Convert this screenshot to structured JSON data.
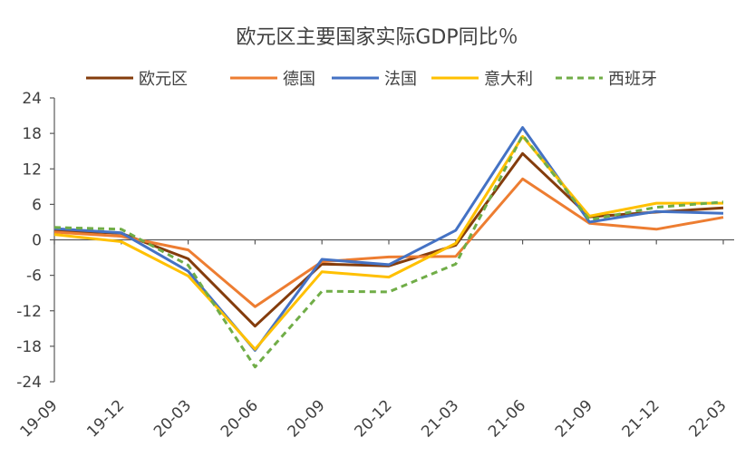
{
  "chart_data": {
    "type": "line",
    "title": "欧元区主要国家实际GDP同比％",
    "xlabel": "",
    "ylabel": "",
    "categories": [
      "19-09",
      "19-12",
      "20-03",
      "20-06",
      "20-09",
      "20-12",
      "21-03",
      "21-06",
      "21-09",
      "21-12",
      "22-03"
    ],
    "y_ticks": [
      24,
      18,
      12,
      6,
      0,
      -6,
      -12,
      -18,
      -24
    ],
    "ylim": [
      -24,
      24
    ],
    "grid": false,
    "legend_position": "top",
    "series": [
      {
        "name": "欧元区",
        "color": "#843C0C",
        "dash": false,
        "values": [
          1.6,
          1.1,
          -3.2,
          -14.6,
          -4.1,
          -4.4,
          -0.9,
          14.6,
          3.9,
          4.7,
          5.4
        ]
      },
      {
        "name": "德国",
        "color": "#ED7D31",
        "dash": false,
        "values": [
          1.3,
          0.6,
          -1.7,
          -11.3,
          -3.7,
          -2.9,
          -2.8,
          10.3,
          2.8,
          1.8,
          3.8
        ]
      },
      {
        "name": "法国",
        "color": "#4472C4",
        "dash": false,
        "values": [
          1.9,
          1.2,
          -5.3,
          -18.7,
          -3.3,
          -4.2,
          1.6,
          19.0,
          3.0,
          4.8,
          4.5
        ]
      },
      {
        "name": "意大利",
        "color": "#FFC000",
        "dash": false,
        "values": [
          0.9,
          -0.3,
          -6.1,
          -18.5,
          -5.4,
          -6.3,
          -0.6,
          17.5,
          4.0,
          6.2,
          6.2
        ]
      },
      {
        "name": "西班牙",
        "color": "#70AD47",
        "dash": true,
        "values": [
          2.1,
          1.8,
          -4.3,
          -21.5,
          -8.7,
          -8.8,
          -4.1,
          17.7,
          3.4,
          5.5,
          6.4
        ]
      }
    ]
  }
}
